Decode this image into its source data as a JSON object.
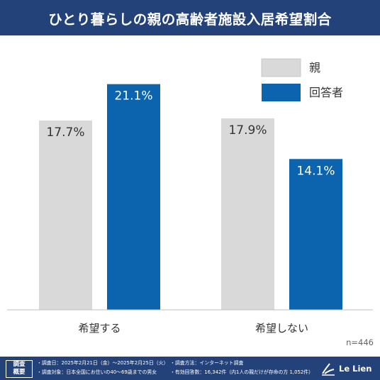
{
  "header": {
    "title": "ひとり暮らしの親の高齢者施設入居希望割合"
  },
  "chart_data": {
    "type": "bar",
    "categories": [
      "希望する",
      "希望しない"
    ],
    "series": [
      {
        "name": "親",
        "values": [
          17.7,
          17.9
        ],
        "labels": [
          "17.7%",
          "17.9%"
        ],
        "color": "#d9d9d9"
      },
      {
        "name": "回答者",
        "values": [
          21.1,
          14.1
        ],
        "labels": [
          "21.1%",
          "14.1%"
        ],
        "color": "#0b64ad"
      }
    ],
    "ylim": [
      0,
      23
    ],
    "legend": "top-right",
    "grid": false,
    "note": "n=446"
  },
  "footer": {
    "summary_label": [
      "調査",
      "概要"
    ],
    "notes_left": [
      "・調査日：2025年2月21日（金）〜2025年2月25日（火）",
      "・調査対象：日本全国にお住いの40〜69歳までの男女"
    ],
    "notes_right": [
      "・調査方法：インターネット調査",
      "・有効回答数：16,342件（内1人の親だけが存命の方 1,052件）"
    ],
    "brand": "Le Lien"
  }
}
